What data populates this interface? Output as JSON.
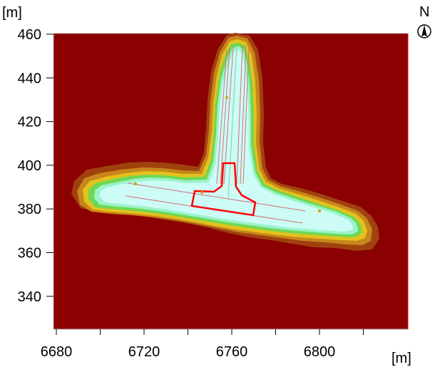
{
  "map": {
    "y_unit": "[m]",
    "x_unit": "[m]",
    "north_label": "N",
    "x_axis": {
      "ticks": [
        {
          "value": 6680,
          "label": "6680"
        },
        {
          "value": 6700,
          "label": ""
        },
        {
          "value": 6720,
          "label": "6720"
        },
        {
          "value": 6740,
          "label": ""
        },
        {
          "value": 6760,
          "label": "6760"
        },
        {
          "value": 6780,
          "label": ""
        },
        {
          "value": 6800,
          "label": "6800"
        },
        {
          "value": 6820,
          "label": ""
        }
      ]
    },
    "y_axis": {
      "ticks": [
        {
          "value": 460,
          "label": "460"
        },
        {
          "value": 440,
          "label": "440"
        },
        {
          "value": 420,
          "label": "420"
        },
        {
          "value": 400,
          "label": "400"
        },
        {
          "value": 380,
          "label": "380"
        },
        {
          "value": 360,
          "label": "360"
        },
        {
          "value": 340,
          "label": "340"
        }
      ]
    },
    "colors": {
      "background": "#8b0000",
      "contour_brown": "#a0420f",
      "contour_orange": "#c8861c",
      "contour_yellow": "#e3c21c",
      "contour_green": "#6fd855",
      "contour_aqua": "#9af3ca",
      "water": "#cdfbf5",
      "outline": "#ff0000",
      "track": "#d4707a",
      "marker": "#c7a600"
    }
  }
}
